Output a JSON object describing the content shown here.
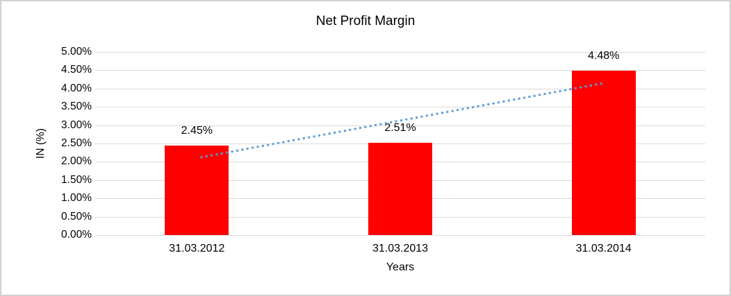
{
  "chart_data": {
    "type": "bar",
    "title": "Net Profit Margin",
    "xlabel": "Years",
    "ylabel": "IN (%)",
    "categories": [
      "31.03.2012",
      "31.03.2013",
      "31.03.2014"
    ],
    "values": [
      2.45,
      2.51,
      4.48
    ],
    "value_labels": [
      "2.45%",
      "2.51%",
      "4.48%"
    ],
    "ylim": [
      0,
      5
    ],
    "ytick_step": 0.5,
    "ytick_labels": [
      "0.00%",
      "0.50%",
      "1.00%",
      "1.50%",
      "2.00%",
      "2.50%",
      "3.00%",
      "3.50%",
      "4.00%",
      "4.50%",
      "5.00%"
    ],
    "grid": true,
    "legend": "none",
    "bar_color": "#ff0000",
    "gridline_color": "#d9d9d9",
    "trendline": {
      "style": "dotted",
      "color": "#5b9bd5",
      "start": {
        "category_index": 0,
        "value": 2.12
      },
      "end": {
        "category_index": 2,
        "value": 4.15
      }
    }
  }
}
